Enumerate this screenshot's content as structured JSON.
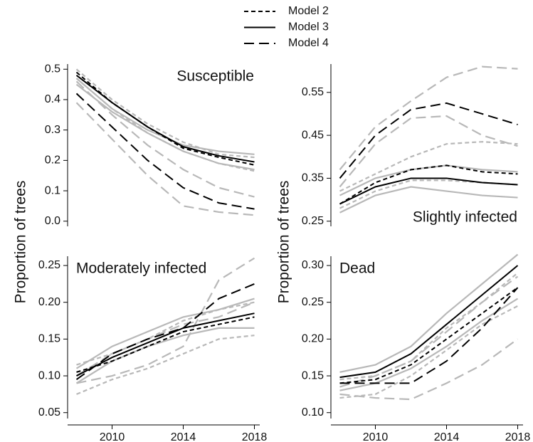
{
  "chart_data": [
    {
      "type": "line",
      "title": "Susceptible",
      "title_position": "top-right",
      "ylabel": "Proportion of trees",
      "x": [
        2008,
        2010,
        2012,
        2014,
        2016,
        2018
      ],
      "xlim": [
        2007.5,
        2018.3
      ],
      "ylim": [
        -0.017,
        0.517
      ],
      "yticks": [
        {
          "value": 0,
          "label": "0.0"
        },
        0.1,
        0.2,
        0.3,
        0.4,
        0.5
      ],
      "series": [
        {
          "color": "#b8b8b8",
          "style": "long",
          "values": [
            0.39,
            0.27,
            0.15,
            0.05,
            0.03,
            0.02
          ]
        },
        {
          "color": "#b8b8b8",
          "style": "long",
          "values": [
            0.46,
            0.35,
            0.25,
            0.17,
            0.11,
            0.08
          ]
        },
        {
          "color": "#b8b8b8",
          "style": "solid",
          "values": [
            0.47,
            0.37,
            0.3,
            0.25,
            0.23,
            0.22
          ]
        },
        {
          "color": "#b8b8b8",
          "style": "solid",
          "values": [
            0.45,
            0.36,
            0.29,
            0.23,
            0.19,
            0.17
          ]
        },
        {
          "color": "#b8b8b8",
          "style": "short",
          "values": [
            0.5,
            0.4,
            0.32,
            0.26,
            0.22,
            0.21
          ]
        },
        {
          "color": "#b8b8b8",
          "style": "short",
          "values": [
            0.47,
            0.37,
            0.29,
            0.23,
            0.19,
            0.165
          ]
        },
        {
          "name": "Model 2",
          "color": "#000000",
          "style": "short",
          "values": [
            0.49,
            0.39,
            0.31,
            0.24,
            0.21,
            0.185
          ]
        },
        {
          "name": "Model 3",
          "color": "#000000",
          "style": "solid",
          "values": [
            0.48,
            0.39,
            0.31,
            0.245,
            0.215,
            0.195
          ]
        },
        {
          "name": "Model 4",
          "color": "#000000",
          "style": "long",
          "values": [
            0.42,
            0.31,
            0.2,
            0.11,
            0.06,
            0.04
          ]
        }
      ]
    },
    {
      "type": "line",
      "title": "Slightly infected",
      "title_position": "bottom-right",
      "ylabel": "Proportion of trees",
      "x": [
        2008,
        2010,
        2012,
        2014,
        2016,
        2018
      ],
      "xlim": [
        2007.5,
        2018.3
      ],
      "ylim": [
        0.238,
        0.616
      ],
      "yticks": [
        0.25,
        0.35,
        0.45,
        0.55
      ],
      "series": [
        {
          "color": "#b8b8b8",
          "style": "long",
          "values": [
            0.37,
            0.47,
            0.53,
            0.585,
            0.61,
            0.605
          ]
        },
        {
          "color": "#b8b8b8",
          "style": "long",
          "values": [
            0.33,
            0.43,
            0.49,
            0.495,
            0.45,
            0.425
          ]
        },
        {
          "color": "#b8b8b8",
          "style": "solid",
          "values": [
            0.31,
            0.35,
            0.37,
            0.38,
            0.37,
            0.365
          ]
        },
        {
          "color": "#b8b8b8",
          "style": "solid",
          "values": [
            0.27,
            0.31,
            0.33,
            0.32,
            0.31,
            0.305
          ]
        },
        {
          "color": "#b8b8b8",
          "style": "short",
          "values": [
            0.32,
            0.36,
            0.4,
            0.43,
            0.435,
            0.43
          ]
        },
        {
          "color": "#b8b8b8",
          "style": "short",
          "values": [
            0.28,
            0.32,
            0.345,
            0.345,
            0.34,
            0.335
          ]
        },
        {
          "name": "Model 2",
          "color": "#000000",
          "style": "short",
          "values": [
            0.29,
            0.34,
            0.37,
            0.38,
            0.365,
            0.36
          ]
        },
        {
          "name": "Model 3",
          "color": "#000000",
          "style": "solid",
          "values": [
            0.29,
            0.33,
            0.35,
            0.35,
            0.34,
            0.335
          ]
        },
        {
          "name": "Model 4",
          "color": "#000000",
          "style": "long",
          "values": [
            0.35,
            0.45,
            0.51,
            0.525,
            0.5,
            0.475
          ]
        }
      ]
    },
    {
      "type": "line",
      "title": "Moderately infected",
      "title_position": "top-left",
      "x": [
        2008,
        2010,
        2012,
        2014,
        2016,
        2018
      ],
      "xlim": [
        2007.5,
        2018.3
      ],
      "xticks": [
        2010,
        2014,
        2018
      ],
      "ylim": [
        0.042,
        0.2626
      ],
      "yticks": [
        0.05,
        {
          "value": 0.1,
          "label": "0.10"
        },
        0.15,
        {
          "value": 0.2,
          "label": "0.20"
        },
        0.25
      ],
      "series": [
        {
          "color": "#b8b8b8",
          "style": "long",
          "values": [
            0.09,
            0.1,
            0.115,
            0.14,
            0.23,
            0.26
          ]
        },
        {
          "color": "#b8b8b8",
          "style": "long",
          "values": [
            0.1,
            0.13,
            0.15,
            0.17,
            0.18,
            0.2
          ]
        },
        {
          "color": "#b8b8b8",
          "style": "short",
          "values": [
            0.075,
            0.095,
            0.11,
            0.13,
            0.15,
            0.155
          ]
        },
        {
          "color": "#b8b8b8",
          "style": "short",
          "values": [
            0.115,
            0.13,
            0.15,
            0.175,
            0.19,
            0.2
          ]
        },
        {
          "color": "#b8b8b8",
          "style": "solid",
          "values": [
            0.11,
            0.14,
            0.16,
            0.18,
            0.19,
            0.205
          ]
        },
        {
          "color": "#b8b8b8",
          "style": "solid",
          "values": [
            0.09,
            0.12,
            0.14,
            0.155,
            0.165,
            0.165
          ]
        },
        {
          "name": "Model 2",
          "color": "#000000",
          "style": "short",
          "values": [
            0.105,
            0.12,
            0.14,
            0.16,
            0.17,
            0.18
          ]
        },
        {
          "name": "Model 3",
          "color": "#000000",
          "style": "solid",
          "values": [
            0.1,
            0.125,
            0.145,
            0.165,
            0.175,
            0.185
          ]
        },
        {
          "name": "Model 4",
          "color": "#000000",
          "style": "long",
          "values": [
            0.095,
            0.13,
            0.15,
            0.165,
            0.205,
            0.225
          ]
        }
      ]
    },
    {
      "type": "line",
      "title": "Dead",
      "title_position": "top-left",
      "x": [
        2008,
        2010,
        2012,
        2014,
        2016,
        2018
      ],
      "xlim": [
        2007.5,
        2018.3
      ],
      "xticks": [
        2010,
        2014,
        2018
      ],
      "ylim": [
        0.092,
        0.3126
      ],
      "yticks": [
        {
          "value": 0.1,
          "label": "0.10"
        },
        0.15,
        {
          "value": 0.2,
          "label": "0.20"
        },
        0.25,
        {
          "value": 0.3,
          "label": "0.30"
        }
      ],
      "series": [
        {
          "color": "#b8b8b8",
          "style": "solid",
          "values": [
            0.155,
            0.165,
            0.19,
            0.235,
            0.275,
            0.315
          ]
        },
        {
          "color": "#b8b8b8",
          "style": "solid",
          "values": [
            0.13,
            0.14,
            0.16,
            0.19,
            0.225,
            0.255
          ]
        },
        {
          "color": "#b8b8b8",
          "style": "short",
          "values": [
            0.12,
            0.125,
            0.15,
            0.185,
            0.22,
            0.245
          ]
        },
        {
          "color": "#b8b8b8",
          "style": "long",
          "values": [
            0.125,
            0.12,
            0.118,
            0.14,
            0.165,
            0.2
          ]
        },
        {
          "color": "#b8b8b8",
          "style": "long",
          "values": [
            0.135,
            0.15,
            0.17,
            0.21,
            0.25,
            0.285
          ]
        },
        {
          "color": "#b8b8b8",
          "style": "short",
          "values": [
            0.145,
            0.15,
            0.17,
            0.215,
            0.25,
            0.29
          ]
        },
        {
          "name": "Model 2",
          "color": "#000000",
          "style": "short",
          "values": [
            0.14,
            0.145,
            0.165,
            0.2,
            0.235,
            0.27
          ]
        },
        {
          "name": "Model 3",
          "color": "#000000",
          "style": "solid",
          "values": [
            0.148,
            0.155,
            0.18,
            0.22,
            0.26,
            0.3
          ]
        },
        {
          "name": "Model 4",
          "color": "#000000",
          "style": "long",
          "values": [
            0.14,
            0.14,
            0.14,
            0.17,
            0.215,
            0.27
          ]
        }
      ]
    }
  ]
}
